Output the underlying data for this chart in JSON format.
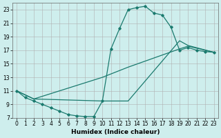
{
  "title": "",
  "xlabel": "Humidex (Indice chaleur)",
  "bg_color": "#ceeeed",
  "grid_color": "#b0b0b0",
  "line_color": "#1a7a6e",
  "xlim": [
    -0.5,
    23.5
  ],
  "ylim": [
    7,
    24
  ],
  "xticks": [
    0,
    1,
    2,
    3,
    4,
    5,
    6,
    7,
    8,
    9,
    10,
    11,
    12,
    13,
    14,
    15,
    16,
    17,
    18,
    19,
    20,
    21,
    22,
    23
  ],
  "yticks": [
    7,
    9,
    11,
    13,
    15,
    17,
    19,
    21,
    23
  ],
  "line1_x": [
    0,
    1,
    2,
    3,
    4,
    5,
    6,
    7,
    8,
    9,
    10,
    11,
    12,
    13,
    14,
    15,
    16,
    17,
    18,
    19,
    20,
    21,
    22,
    23
  ],
  "line1_y": [
    11,
    10,
    9.5,
    9,
    8.5,
    8,
    7.5,
    7.3,
    7.2,
    7.2,
    9.5,
    17.2,
    20.2,
    23.0,
    23.3,
    23.5,
    22.5,
    22.2,
    20.4,
    17.0,
    17.4,
    17.0,
    16.8,
    16.7
  ],
  "line2_x": [
    0,
    2,
    10,
    13,
    19,
    20,
    23
  ],
  "line2_y": [
    11,
    9.8,
    9.5,
    9.5,
    18.4,
    17.7,
    16.7
  ],
  "line3_x": [
    0,
    2,
    10,
    13,
    19,
    20,
    23
  ],
  "line3_y": [
    11,
    9.8,
    13.0,
    14.5,
    17.2,
    17.6,
    16.7
  ],
  "xlabel_fontsize": 6.5,
  "tick_fontsize": 5.5
}
